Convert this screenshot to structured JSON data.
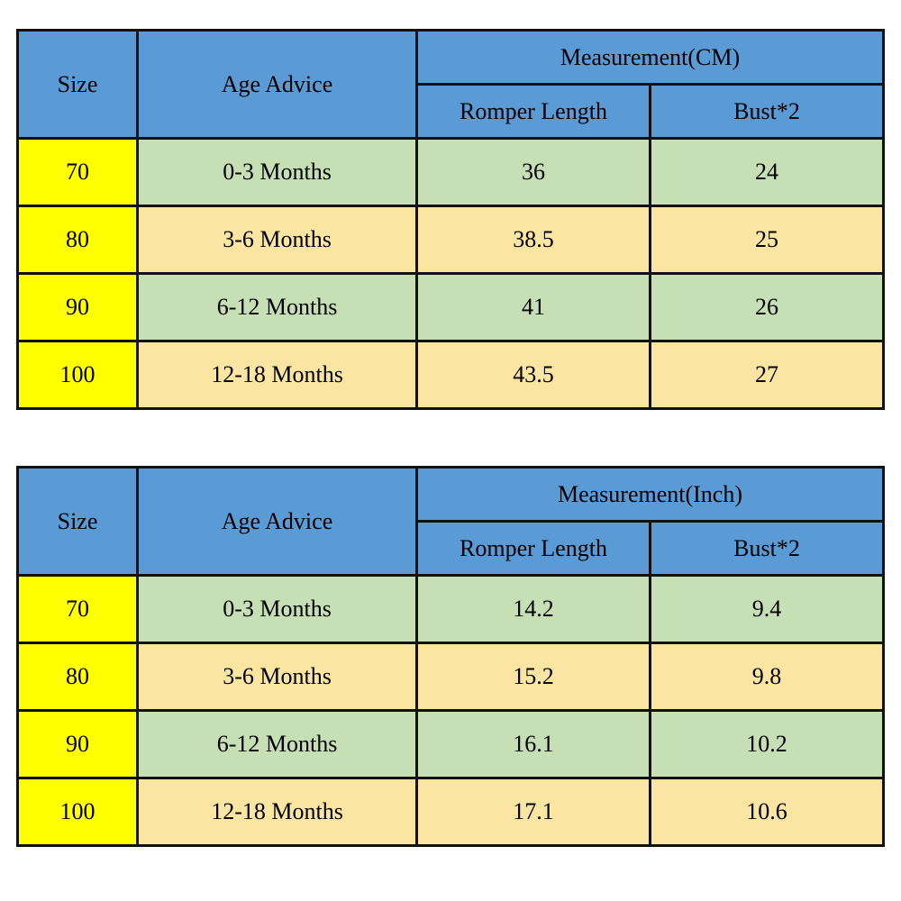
{
  "chart_data": [
    {
      "type": "table",
      "measurement_header": "Measurement(CM)",
      "columns": [
        "Size",
        "Age Advice",
        "Romper Length",
        "Bust*2"
      ],
      "rows": [
        [
          "70",
          "0-3 Months",
          "36",
          "24"
        ],
        [
          "80",
          "3-6 Months",
          "38.5",
          "25"
        ],
        [
          "90",
          "6-12 Months",
          "41",
          "26"
        ],
        [
          "100",
          "12-18 Months",
          "43.5",
          "27"
        ]
      ]
    },
    {
      "type": "table",
      "measurement_header": "Measurement(Inch)",
      "columns": [
        "Size",
        "Age Advice",
        "Romper Length",
        "Bust*2"
      ],
      "rows": [
        [
          "70",
          "0-3 Months",
          "14.2",
          "9.4"
        ],
        [
          "80",
          "3-6 Months",
          "15.2",
          "9.8"
        ],
        [
          "90",
          "6-12 Months",
          "16.1",
          "10.2"
        ],
        [
          "100",
          "12-18 Months",
          "17.1",
          "10.6"
        ]
      ]
    }
  ],
  "colors": {
    "header_blue": "#5b9bd5",
    "size_yellow": "#ffff00",
    "row_green": "#c6dfb5",
    "row_tan": "#fbe5a3",
    "border_black": "#111111"
  }
}
